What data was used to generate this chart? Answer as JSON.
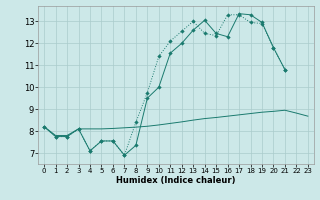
{
  "xlabel": "Humidex (Indice chaleur)",
  "bg_color": "#cce8e8",
  "grid_color": "#aacccc",
  "line_color": "#1a7a6e",
  "xlim": [
    -0.5,
    23.5
  ],
  "ylim": [
    6.5,
    13.7
  ],
  "xticks": [
    0,
    1,
    2,
    3,
    4,
    5,
    6,
    7,
    8,
    9,
    10,
    11,
    12,
    13,
    14,
    15,
    16,
    17,
    18,
    19,
    20,
    21,
    22,
    23
  ],
  "yticks": [
    7,
    8,
    9,
    10,
    11,
    12,
    13
  ],
  "line1_x": [
    0,
    1,
    2,
    3,
    4,
    5,
    6,
    7,
    8,
    9,
    10,
    11,
    12,
    13,
    14,
    15,
    16,
    17,
    18,
    19,
    20,
    21
  ],
  "line1_y": [
    8.2,
    7.75,
    7.75,
    8.1,
    7.1,
    7.55,
    7.55,
    6.9,
    8.4,
    9.75,
    11.4,
    12.1,
    12.55,
    13.0,
    12.45,
    12.35,
    13.3,
    13.3,
    12.95,
    12.9,
    11.8,
    10.8
  ],
  "line2_x": [
    0,
    1,
    2,
    3,
    4,
    5,
    6,
    7,
    8,
    9,
    10,
    11,
    12,
    13,
    14,
    15,
    16,
    17,
    18,
    19,
    20,
    21
  ],
  "line2_y": [
    8.2,
    7.75,
    7.75,
    8.1,
    7.1,
    7.55,
    7.55,
    6.9,
    7.35,
    9.5,
    10.0,
    11.55,
    12.0,
    12.6,
    13.05,
    12.45,
    12.3,
    13.35,
    13.3,
    12.95,
    11.8,
    10.8
  ],
  "line3_x": [
    0,
    1,
    2,
    3,
    4,
    5,
    6,
    7,
    8,
    9,
    10,
    11,
    12,
    13,
    14,
    15,
    16,
    17,
    18,
    19,
    20,
    21,
    22,
    23
  ],
  "line3_y": [
    8.2,
    7.8,
    7.8,
    8.1,
    8.1,
    8.1,
    8.12,
    8.15,
    8.18,
    8.22,
    8.28,
    8.35,
    8.42,
    8.5,
    8.57,
    8.62,
    8.68,
    8.74,
    8.8,
    8.86,
    8.9,
    8.95,
    8.82,
    8.68
  ]
}
